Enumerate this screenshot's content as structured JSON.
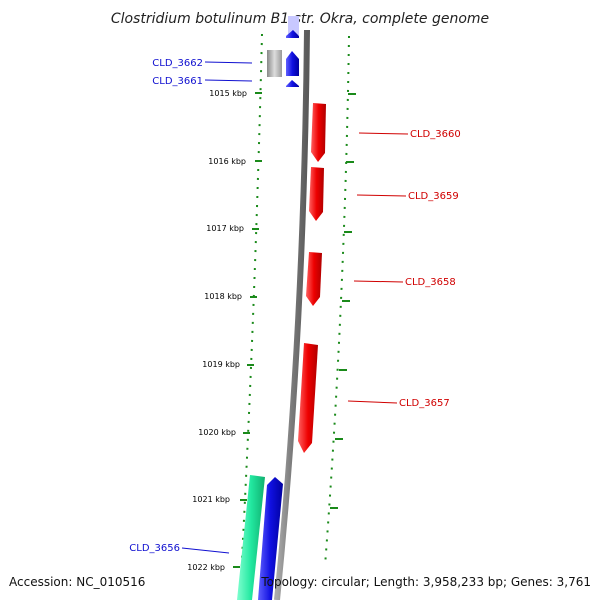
{
  "title": "Clostridium botulinum B1 str. Okra, complete genome",
  "footer": {
    "accession": "Accession: NC_010516",
    "topology": "Topology: circular; Length: 3,958,233 bp; Genes: 3,761"
  },
  "colors": {
    "backbone": "#8a8a8a",
    "forward_gene": "#1010e0",
    "reverse_gene": "#e00000",
    "rna_gene": "#22e8a0",
    "ticks": "#1a8a1a",
    "faded_gene": "#b8b8b8"
  },
  "ruler": [
    {
      "label": "1015 kbp"
    },
    {
      "label": "1016 kbp"
    },
    {
      "label": "1017 kbp"
    },
    {
      "label": "1018 kbp"
    },
    {
      "label": "1019 kbp"
    },
    {
      "label": "1020 kbp"
    },
    {
      "label": "1021 kbp"
    },
    {
      "label": "1022 kbp"
    }
  ],
  "genes": [
    {
      "name": "CLD_3662",
      "strand": "forward"
    },
    {
      "name": "CLD_3661",
      "strand": "forward"
    },
    {
      "name": "CLD_3660",
      "strand": "reverse"
    },
    {
      "name": "CLD_3659",
      "strand": "reverse"
    },
    {
      "name": "CLD_3658",
      "strand": "reverse"
    },
    {
      "name": "CLD_3657",
      "strand": "reverse"
    },
    {
      "name": "CLD_3656",
      "strand": "forward"
    }
  ]
}
